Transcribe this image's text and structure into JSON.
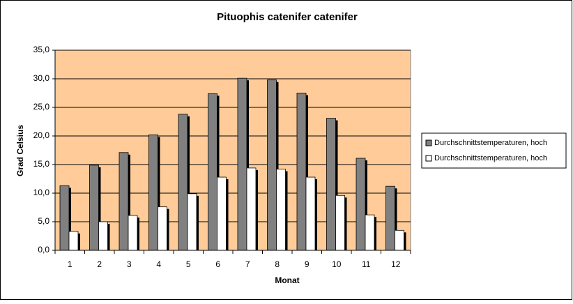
{
  "chart_data": {
    "type": "bar",
    "title": "Pituophis catenifer catenifer",
    "x_label": "Monat",
    "y_label": "Grad Celsius",
    "categories": [
      "1",
      "2",
      "3",
      "4",
      "5",
      "6",
      "7",
      "8",
      "9",
      "10",
      "11",
      "12"
    ],
    "series": [
      {
        "name": "Durchschnittstemperaturen, hoch",
        "color": "#808080",
        "values": [
          11.3,
          14.9,
          17.1,
          20.2,
          23.8,
          27.4,
          30.1,
          29.8,
          27.5,
          23.1,
          16.1,
          11.2
        ]
      },
      {
        "name": "Durchschnittstemperaturen, hoch",
        "color": "#ffffff",
        "values": [
          3.3,
          5.0,
          6.1,
          7.6,
          9.9,
          12.8,
          14.4,
          14.2,
          12.8,
          9.6,
          6.2,
          3.5
        ]
      }
    ],
    "ylim": [
      0,
      35
    ],
    "yticks": [
      {
        "value": 0,
        "label": "0,0"
      },
      {
        "value": 5,
        "label": "5,0"
      },
      {
        "value": 10,
        "label": "10,0"
      },
      {
        "value": 15,
        "label": "15,0"
      },
      {
        "value": 20,
        "label": "20,0"
      },
      {
        "value": 25,
        "label": "25,0"
      },
      {
        "value": 30,
        "label": "30,0"
      },
      {
        "value": 35,
        "label": "35,0"
      }
    ],
    "grid": true,
    "legend": "right",
    "plot_background": "#ffcc99"
  }
}
